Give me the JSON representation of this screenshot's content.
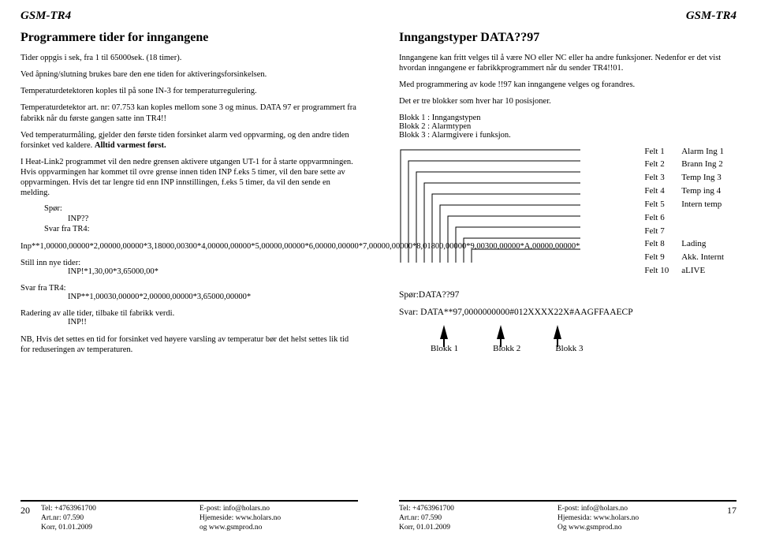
{
  "left": {
    "header": "GSM-TR4",
    "title": "Programmere tider for inngangene",
    "p1": "Tider oppgis i sek, fra 1 til 65000sek. (18 timer).",
    "p2": "Ved åpning/slutning  brukes bare den ene tiden for aktiveringsforsinkelsen.",
    "p3": "Temperaturdetektoren koples til på sone  IN-3 for temperaturregulering.",
    "p4": "Temperaturdetektor art. nr: 07.753 kan koples mellom sone 3 og minus. DATA 97 er programmert fra fabrikk når du første gangen satte inn TR4!!",
    "p5": "Ved temperaturmåling, gjelder den første tiden forsinket alarm ved oppvarming, og den andre tiden forsinket ved kaldere. Alltid varmest først.",
    "p6": "I Heat-Link2 programmet vil den nedre grensen aktivere utgangen UT-1 for å starte oppvarmningen. Hvis oppvarmingen har kommet til ovre grense innen tiden INP f.eks 5 timer, vil den bare sette av oppvarmingen. Hvis det tar lengre tid enn INP innstillingen, f.eks 5 timer, da vil den sende en melding.",
    "spor": "Spør:",
    "inpq": "INP??",
    "svar1": "Svar fra TR4:",
    "p7": "Inp**1,00000,00000*2,00000,00000*3,18000,00300*4,00000,00000*5,00000,00000*6,00000,00000*7,00000,00000*8,01800,00000*9,00300,00000*A,00000,00000*",
    "still": "Still inn nye tider:",
    "stillv": "INP!*1,30,00*3,65000,00*",
    "svar2": "Svar fra TR4:",
    "svar2v": "INP**1,00030,00000*2,00000,00000*3,65000,00000*",
    "radering": "Radering av alle tider, tilbake til fabrikk verdi.",
    "raderingv": "INP!!",
    "nb": "NB, Hvis det settes en tid for forsinket ved høyere varsling av temperatur bør det helst settes lik tid for reduseringen av temperaturen.",
    "footer": {
      "pnum": "20",
      "c1a": "Tel:  +4763961700",
      "c1b": "Art.nr: 07.590",
      "c1c": "Korr, 01.01.2009",
      "c2a": "E-post: info@holars.no",
      "c2b": "Hjemeside: www.holars.no",
      "c2c": "og  www.gsmprod.no"
    }
  },
  "right": {
    "header": "GSM-TR4",
    "title": "Inngangstyper DATA??97",
    "p1": "Inngangene kan fritt velges til å være NO eller NC eller ha andre funksjoner. Nedenfor er det vist hvordan inngangene er fabrikkprogrammert når du sender TR4!!01.",
    "p2": "Med programmering av kode !!97 kan inngangene velges og forandres.",
    "p3": "Det er tre blokker som hver har 10 posisjoner.",
    "b1": "Blokk 1 : Inngangstypen",
    "b2": "Blokk 2 : Alarmtypen",
    "b3": "Blokk 3 : Alarmgivere i funksjon.",
    "felt": [
      [
        "Felt 1",
        "Alarm Ing 1"
      ],
      [
        "Felt 2",
        "Brann Ing 2"
      ],
      [
        "Felt 3",
        "Temp Ing 3"
      ],
      [
        "Felt 4",
        "Temp ing 4"
      ],
      [
        "Felt 5",
        "Intern temp"
      ],
      [
        "Felt 6",
        ""
      ],
      [
        "Felt 7",
        ""
      ],
      [
        "Felt 8",
        "Lading"
      ],
      [
        "Felt 9",
        "Akk. Internt"
      ],
      [
        "Felt 10",
        "aLIVE"
      ]
    ],
    "spor": "Spør:DATA??97",
    "svar": "Svar: DATA**97,0000000000#012XXXX22X#AAGFFAAECP",
    "blokk1": "Blokk 1",
    "blokk2": "Blokk 2",
    "blokk3": "Blokk 3",
    "footer": {
      "c1a": "Tel:  +4763961700",
      "c1b": "Art.nr: 07.590",
      "c1c": "Korr, 01.01.2009",
      "c2a": "E-post: info@holars.no",
      "c2b": "Hjemesida: www.holars.no",
      "c2c": "Og  www.gsmprod.no",
      "pnum": "17"
    }
  }
}
